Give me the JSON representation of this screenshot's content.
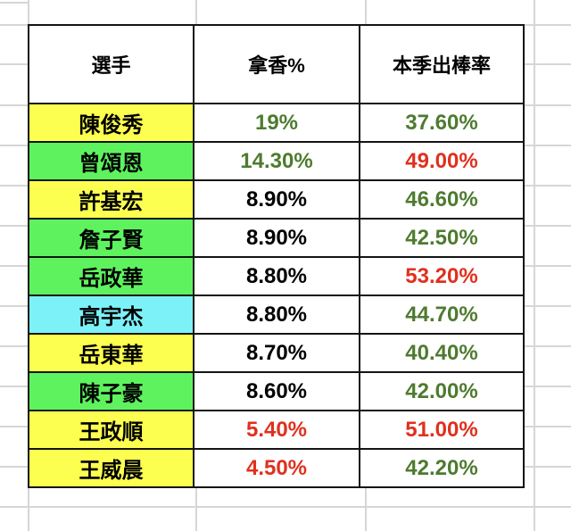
{
  "table": {
    "columns": [
      {
        "key": "player",
        "label": "選手"
      },
      {
        "key": "incense",
        "label": "拿香%"
      },
      {
        "key": "swing",
        "label": "本季出棒率"
      }
    ],
    "rows": [
      {
        "player": "陳俊秀",
        "highlight": "yellow",
        "incense": "19%",
        "incense_color": "green",
        "swing": "37.60%",
        "swing_color": "green"
      },
      {
        "player": "曾頌恩",
        "highlight": "green",
        "incense": "14.30%",
        "incense_color": "green",
        "swing": "49.00%",
        "swing_color": "red"
      },
      {
        "player": "許基宏",
        "highlight": "yellow",
        "incense": "8.90%",
        "incense_color": "black",
        "swing": "46.60%",
        "swing_color": "green"
      },
      {
        "player": "詹子賢",
        "highlight": "green",
        "incense": "8.90%",
        "incense_color": "black",
        "swing": "42.50%",
        "swing_color": "green"
      },
      {
        "player": "岳政華",
        "highlight": "green",
        "incense": "8.80%",
        "incense_color": "black",
        "swing": "53.20%",
        "swing_color": "red"
      },
      {
        "player": "高宇杰",
        "highlight": "cyan",
        "incense": "8.80%",
        "incense_color": "black",
        "swing": "44.70%",
        "swing_color": "green"
      },
      {
        "player": "岳東華",
        "highlight": "yellow",
        "incense": "8.70%",
        "incense_color": "black",
        "swing": "40.40%",
        "swing_color": "green"
      },
      {
        "player": "陳子豪",
        "highlight": "green",
        "incense": "8.60%",
        "incense_color": "black",
        "swing": "42.00%",
        "swing_color": "green"
      },
      {
        "player": "王政順",
        "highlight": "yellow",
        "incense": "5.40%",
        "incense_color": "red",
        "swing": "51.00%",
        "swing_color": "red"
      },
      {
        "player": "王威晨",
        "highlight": "yellow",
        "incense": "4.50%",
        "incense_color": "red",
        "swing": "42.20%",
        "swing_color": "green"
      }
    ]
  },
  "colors": {
    "highlight_yellow": "#fdff50",
    "highlight_green": "#5ef35e",
    "highlight_cyan": "#7df1f8",
    "value_green": "#4e7b2f",
    "value_red": "#e0301e",
    "value_black": "#000000",
    "grid_line": "#d6d6d6",
    "table_border": "#141414"
  }
}
